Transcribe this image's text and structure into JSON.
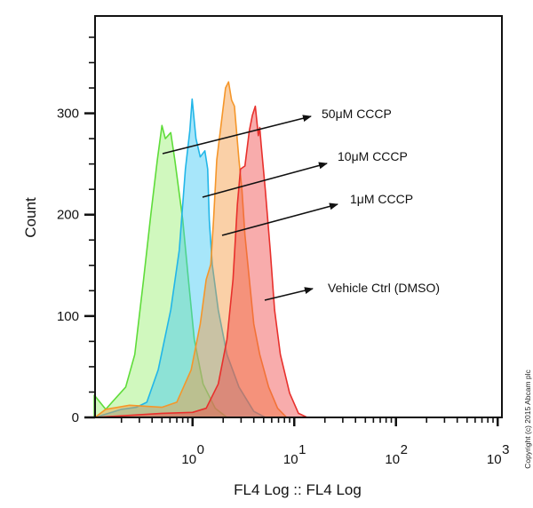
{
  "chart_data": {
    "type": "area",
    "title": "",
    "xlabel": "FL4 Log :: FL4 Log",
    "ylabel": "Count",
    "xscale": "log",
    "xlim": [
      0.11,
      1100
    ],
    "ylim": [
      0,
      396
    ],
    "grid": false,
    "x_ticks": [
      {
        "value": 1,
        "base": "10",
        "exp": "0"
      },
      {
        "value": 10,
        "base": "10",
        "exp": "1"
      },
      {
        "value": 100,
        "base": "10",
        "exp": "2"
      },
      {
        "value": 1000,
        "base": "10",
        "exp": "3"
      }
    ],
    "y_ticks": [
      0,
      100,
      200,
      300
    ],
    "series": [
      {
        "name": "50μM CCCP",
        "color": "#5fdc3a",
        "fill": "rgba(150,240,110,0.45)",
        "x": [
          0.108,
          0.14,
          0.22,
          0.27,
          0.33,
          0.39,
          0.45,
          0.5,
          0.54,
          0.61,
          0.67,
          0.8,
          0.91,
          1.04,
          1.27,
          1.67,
          2.18,
          1100
        ],
        "y": [
          22,
          8,
          30,
          62,
          136,
          201,
          254,
          288,
          275,
          281,
          254,
          195,
          136,
          77,
          33,
          9,
          0,
          0
        ]
      },
      {
        "name": "10μM CCCP",
        "color": "#22b6e8",
        "fill": "rgba(60,200,245,0.45)",
        "x": [
          0.11,
          0.2,
          0.28,
          0.355,
          0.46,
          0.61,
          0.74,
          0.85,
          0.94,
          0.99,
          1.08,
          1.19,
          1.32,
          1.41,
          1.46,
          1.56,
          1.79,
          2.18,
          2.86,
          4.0,
          5.2
        ],
        "y": [
          0,
          8,
          10,
          15,
          47,
          106,
          165,
          245,
          283,
          314,
          275,
          257,
          263,
          245,
          195,
          151,
          106,
          62,
          30,
          6,
          0
        ]
      },
      {
        "name": "1μM CCCP",
        "color": "#f5962a",
        "fill": "rgba(245,150,60,0.45)",
        "x": [
          0.11,
          0.14,
          0.24,
          0.5,
          0.7,
          0.97,
          1.19,
          1.36,
          1.51,
          1.61,
          1.73,
          1.91,
          2.11,
          2.26,
          2.42,
          2.58,
          2.86,
          3.06,
          3.27,
          3.62,
          4.0,
          4.58,
          5.6,
          6.86,
          8.4
        ],
        "y": [
          0,
          8,
          12,
          10,
          15,
          47,
          92,
          136,
          151,
          195,
          254,
          289,
          325,
          331,
          313,
          307,
          254,
          224,
          180,
          136,
          92,
          62,
          30,
          9,
          0
        ]
      },
      {
        "name": "Vehicle Ctrl (DMSO)",
        "color": "#e8302c",
        "fill": "rgba(240,70,70,0.45)",
        "x": [
          0.11,
          0.5,
          1.0,
          1.36,
          1.79,
          2.18,
          2.5,
          2.76,
          2.96,
          3.27,
          3.62,
          3.87,
          4.14,
          4.43,
          4.58,
          4.73,
          5.2,
          5.8,
          6.4,
          7.3,
          9.0,
          11,
          13.4
        ],
        "y": [
          0,
          4,
          5,
          9,
          33,
          77,
          136,
          210,
          245,
          248,
          283,
          298,
          307,
          278,
          286,
          269,
          224,
          165,
          106,
          62,
          24,
          4,
          0
        ]
      }
    ],
    "annotations": [
      {
        "text": "50μM CCCP",
        "points_to": "50μM CCCP"
      },
      {
        "text": "10μM CCCP",
        "points_to": "10μM CCCP"
      },
      {
        "text": "1μM CCCP",
        "points_to": "1μM CCCP"
      },
      {
        "text": "Vehicle Ctrl (DMSO)",
        "points_to": "Vehicle Ctrl (DMSO)"
      }
    ],
    "copyright": "Copyright (c) 2015 Abcam plc"
  }
}
